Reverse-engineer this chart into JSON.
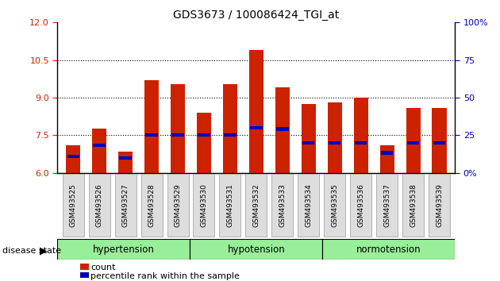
{
  "title": "GDS3673 / 100086424_TGI_at",
  "samples": [
    "GSM493525",
    "GSM493526",
    "GSM493527",
    "GSM493528",
    "GSM493529",
    "GSM493530",
    "GSM493531",
    "GSM493532",
    "GSM493533",
    "GSM493534",
    "GSM493535",
    "GSM493536",
    "GSM493537",
    "GSM493538",
    "GSM493539"
  ],
  "count_values": [
    7.1,
    7.75,
    6.85,
    9.7,
    9.55,
    8.4,
    9.55,
    10.9,
    9.4,
    8.75,
    8.8,
    9.0,
    7.1,
    8.6,
    8.6
  ],
  "percentile_values": [
    6.65,
    7.1,
    6.6,
    7.5,
    7.5,
    7.5,
    7.5,
    7.8,
    7.75,
    7.2,
    7.2,
    7.2,
    6.8,
    7.2,
    7.2
  ],
  "ymin": 6,
  "ymax": 12,
  "yticks": [
    6,
    7.5,
    9,
    10.5,
    12
  ],
  "bar_color": "#CC2200",
  "percentile_color": "#0000BB",
  "groups": [
    {
      "label": "hypertension",
      "start": 0,
      "end": 5
    },
    {
      "label": "hypotension",
      "start": 5,
      "end": 10
    },
    {
      "label": "normotension",
      "start": 10,
      "end": 15
    }
  ],
  "group_color": "#99EE99",
  "bar_width": 0.55,
  "legend_count_label": "count",
  "legend_percentile_label": "percentile rank within the sample",
  "disease_state_label": "disease state",
  "tick_label_color_left": "#CC2200",
  "tick_label_color_right": "#0000BB"
}
